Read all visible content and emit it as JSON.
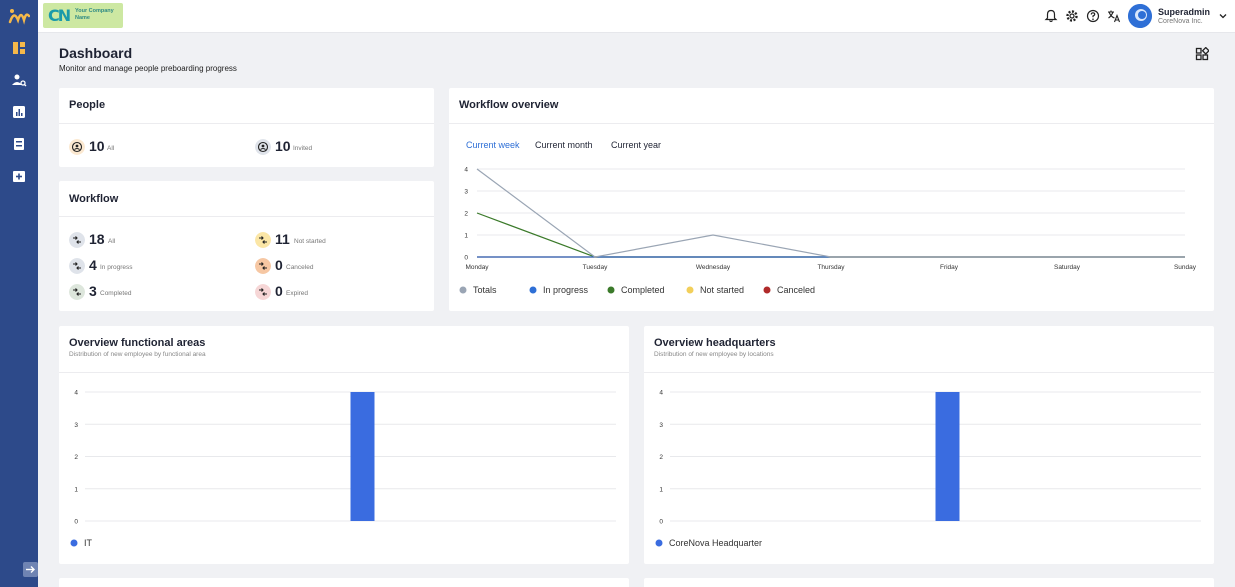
{
  "header": {
    "company_logo_text": "Your Company Name",
    "company_logo_mark": "CN",
    "user_name": "Superadmin",
    "user_org": "CoreNova Inc."
  },
  "page": {
    "title": "Dashboard",
    "subtitle": "Monitor and manage people preboarding progress"
  },
  "people": {
    "title": "People",
    "stats": [
      {
        "value": "10",
        "label": "All"
      },
      {
        "value": "10",
        "label": "Invited"
      }
    ]
  },
  "workflow": {
    "title": "Workflow",
    "stats": [
      {
        "value": "18",
        "label": "All",
        "color": "#dfe3ea"
      },
      {
        "value": "11",
        "label": "Not started",
        "color": "#fbe6a6"
      },
      {
        "value": "4",
        "label": "In progress",
        "color": "#dfe3ea"
      },
      {
        "value": "0",
        "label": "Canceled",
        "color": "#f6c7a3"
      },
      {
        "value": "3",
        "label": "Completed",
        "color": "#dde6dc"
      },
      {
        "value": "0",
        "label": "Expired",
        "color": "#f6d6d6"
      }
    ]
  },
  "workflow_overview": {
    "title": "Workflow overview",
    "tabs": [
      "Current week",
      "Current month",
      "Current year"
    ],
    "active_tab": "Current week"
  },
  "functional_areas": {
    "title": "Overview functional areas",
    "subtitle": "Distribution of new employee by functional area"
  },
  "headquarters": {
    "title": "Overview headquarters",
    "subtitle": "Distribution of new employee by locations"
  },
  "colors": {
    "sidebar": "#2d4a8a",
    "accent": "#2e6fd6",
    "totals": "#9aa5b4",
    "in_progress": "#2e6fd6",
    "completed": "#3b7a2a",
    "not_started": "#f2cf5a",
    "canceled": "#b02a2a"
  },
  "chart_data": [
    {
      "type": "line",
      "categories": [
        "Monday",
        "Tuesday",
        "Wednesday",
        "Thursday",
        "Friday",
        "Saturday",
        "Sunday"
      ],
      "ylim": [
        0,
        4
      ],
      "yticks": [
        "0",
        "1",
        "2",
        "3",
        "4"
      ],
      "series": [
        {
          "name": "Totals",
          "color": "#9aa5b4",
          "values": [
            4,
            0,
            1,
            0,
            0,
            0,
            0
          ]
        },
        {
          "name": "In progress",
          "color": "#2e6fd6",
          "values": [
            0,
            0,
            0,
            0,
            0,
            0,
            0
          ]
        },
        {
          "name": "Completed",
          "color": "#3b7a2a",
          "values": [
            2,
            0,
            0,
            0,
            0,
            0,
            0
          ]
        },
        {
          "name": "Not started",
          "color": "#f2cf5a",
          "values": [
            0,
            0,
            0,
            0,
            0,
            0,
            0
          ]
        },
        {
          "name": "Canceled",
          "color": "#b02a2a",
          "values": [
            0,
            0,
            0,
            0,
            0,
            0,
            0
          ]
        }
      ],
      "legend": "bottom-left",
      "grid": true
    },
    {
      "type": "bar",
      "categories": [
        "IT"
      ],
      "series": [
        {
          "name": "IT",
          "values": [
            4
          ]
        }
      ],
      "ylim": [
        0,
        4
      ],
      "yticks": [
        "0",
        "1",
        "2",
        "3",
        "4"
      ],
      "legend": "bottom-left",
      "grid": true
    },
    {
      "type": "bar",
      "categories": [
        "CoreNova Headquarter"
      ],
      "series": [
        {
          "name": "CoreNova Headquarter",
          "values": [
            4
          ]
        }
      ],
      "ylim": [
        0,
        4
      ],
      "yticks": [
        "0",
        "1",
        "2",
        "3",
        "4"
      ],
      "legend": "bottom-left",
      "grid": true
    }
  ]
}
